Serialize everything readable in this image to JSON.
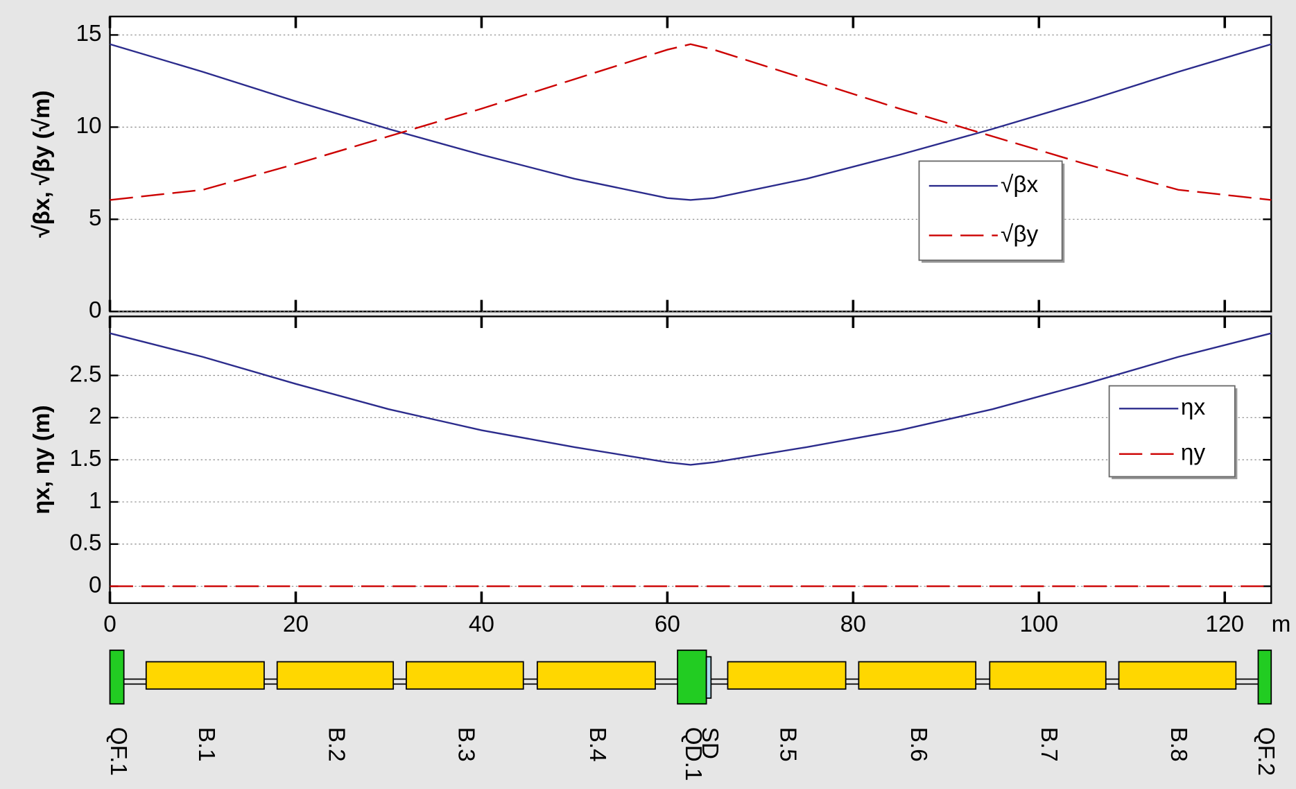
{
  "chart_data": [
    {
      "type": "line",
      "ylabel": "√βx, √βy (√m)",
      "x": [
        0,
        10,
        20,
        30,
        40,
        50,
        60,
        62.5,
        65,
        75,
        85,
        95,
        105,
        115,
        125
      ],
      "series": [
        {
          "name": "√βx",
          "color": "#2b2b8c",
          "style": "solid",
          "values": [
            14.5,
            13.0,
            11.4,
            9.9,
            8.5,
            7.2,
            6.15,
            6.05,
            6.15,
            7.2,
            8.5,
            9.9,
            11.4,
            13.0,
            14.5
          ]
        },
        {
          "name": "√βy",
          "color": "#cc0000",
          "style": "dashed",
          "values": [
            6.05,
            6.6,
            8.0,
            9.5,
            11.0,
            12.6,
            14.2,
            14.5,
            14.2,
            12.6,
            11.0,
            9.5,
            8.0,
            6.6,
            6.05
          ]
        }
      ],
      "xlim": [
        0,
        125
      ],
      "ylim": [
        0,
        16
      ],
      "yticks": [
        0,
        5,
        10,
        15
      ],
      "grid": true
    },
    {
      "type": "line",
      "ylabel": "ηx, ηy (m)",
      "xlabel": "m",
      "x": [
        0,
        10,
        20,
        30,
        40,
        50,
        60,
        62.5,
        65,
        75,
        85,
        95,
        105,
        115,
        125
      ],
      "series": [
        {
          "name": "ηx",
          "color": "#2b2b8c",
          "style": "solid",
          "values": [
            3.0,
            2.72,
            2.4,
            2.1,
            1.85,
            1.65,
            1.47,
            1.44,
            1.47,
            1.65,
            1.85,
            2.1,
            2.4,
            2.72,
            3.0
          ]
        },
        {
          "name": "ηy",
          "color": "#cc0000",
          "style": "dashed",
          "values": [
            0,
            0,
            0,
            0,
            0,
            0,
            0,
            0,
            0,
            0,
            0,
            0,
            0,
            0,
            0
          ]
        }
      ],
      "xlim": [
        0,
        125
      ],
      "ylim": [
        -0.2,
        3.2
      ],
      "xticks": [
        0,
        20,
        40,
        60,
        80,
        100,
        120
      ],
      "yticks": [
        0,
        0.5,
        1,
        1.5,
        2,
        2.5
      ],
      "grid": true
    }
  ],
  "lattice": {
    "elements": [
      {
        "name": "QF.1",
        "kind": "quad",
        "start": 0,
        "end": 1.5
      },
      {
        "name": "B.1",
        "kind": "bend",
        "start": 3.9,
        "end": 16.6
      },
      {
        "name": "B.2",
        "kind": "bend",
        "start": 18.0,
        "end": 30.5
      },
      {
        "name": "B.3",
        "kind": "bend",
        "start": 31.9,
        "end": 44.5
      },
      {
        "name": "B.4",
        "kind": "bend",
        "start": 46.0,
        "end": 58.7
      },
      {
        "name": "QD.1",
        "kind": "quad",
        "start": 61.1,
        "end": 64.2
      },
      {
        "name": "SD",
        "kind": "sext",
        "start": 64.2,
        "end": 64.7
      },
      {
        "name": "B.5",
        "kind": "bend",
        "start": 66.5,
        "end": 79.2
      },
      {
        "name": "B.6",
        "kind": "bend",
        "start": 80.6,
        "end": 93.2
      },
      {
        "name": "B.7",
        "kind": "bend",
        "start": 94.7,
        "end": 107.2
      },
      {
        "name": "B.8",
        "kind": "bend",
        "start": 108.6,
        "end": 121.2
      },
      {
        "name": "QF.2",
        "kind": "quad",
        "start": 123.6,
        "end": 125
      }
    ]
  }
}
